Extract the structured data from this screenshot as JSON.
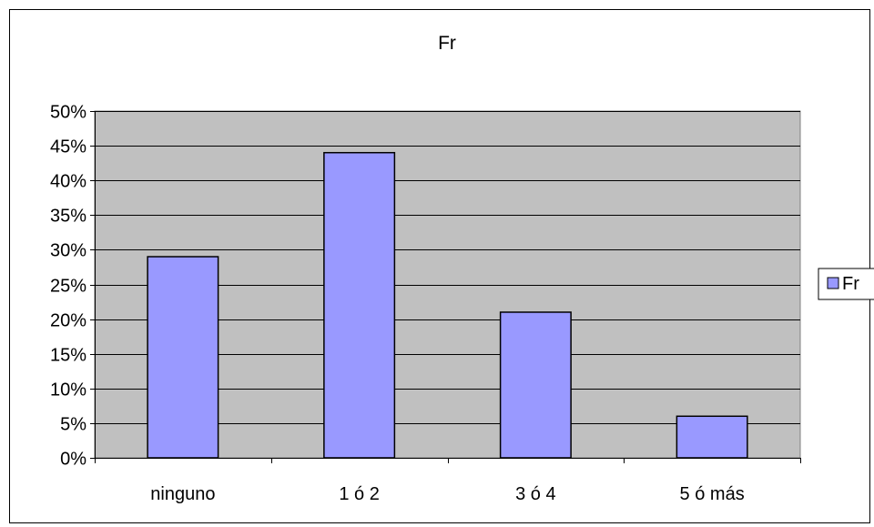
{
  "chart_data": {
    "type": "bar",
    "title": "Fr",
    "categories": [
      "ninguno",
      "1 ó 2",
      "3 ó 4",
      "5 ó más"
    ],
    "series": [
      {
        "name": "Fr",
        "values": [
          0.29,
          0.44,
          0.21,
          0.06
        ],
        "color": "#9999ff"
      }
    ],
    "y_ticks": [
      "0%",
      "5%",
      "10%",
      "15%",
      "20%",
      "25%",
      "30%",
      "35%",
      "40%",
      "45%",
      "50%"
    ],
    "ylim": [
      0,
      0.5
    ],
    "grid": true,
    "plot_background": "#c0c0c0",
    "legend": {
      "position": "right",
      "entries": [
        "Fr"
      ]
    }
  }
}
